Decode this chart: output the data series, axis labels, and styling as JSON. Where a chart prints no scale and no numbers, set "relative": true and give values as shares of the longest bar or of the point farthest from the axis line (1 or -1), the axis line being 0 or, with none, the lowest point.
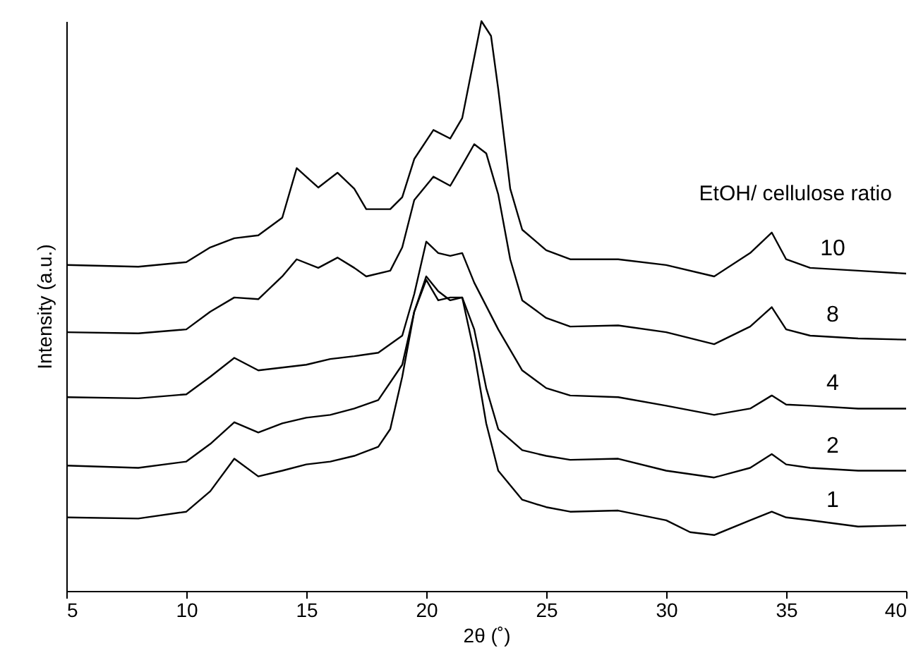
{
  "chart_data": {
    "type": "line",
    "relative": true,
    "xlabel": "2θ (˚)",
    "ylabel": "Intensity (a.u.)",
    "legend_title": "EtOH/ cellulose ratio",
    "xlim": [
      5,
      40
    ],
    "xticks": [
      5,
      10,
      15,
      20,
      25,
      30,
      35,
      40
    ],
    "grid": false,
    "marker": "none",
    "line_style": "solid",
    "series": [
      {
        "name": "10",
        "color": "#000000",
        "x": [
          5,
          8,
          10,
          11,
          12,
          13,
          14,
          14.6,
          15.5,
          16.3,
          17,
          17.5,
          18.5,
          19,
          19.5,
          20.3,
          21,
          21.5,
          22.3,
          22.7,
          23,
          23.5,
          24,
          25,
          26,
          28,
          30,
          32,
          33.5,
          34.4,
          35,
          36,
          38,
          40
        ],
        "values": [
          0.572,
          0.569,
          0.577,
          0.603,
          0.619,
          0.624,
          0.655,
          0.742,
          0.708,
          0.734,
          0.706,
          0.67,
          0.67,
          0.691,
          0.758,
          0.809,
          0.794,
          0.83,
          1,
          0.974,
          0.881,
          0.706,
          0.634,
          0.598,
          0.582,
          0.582,
          0.572,
          0.552,
          0.593,
          0.629,
          0.582,
          0.567,
          0.562,
          0.557
        ]
      },
      {
        "name": "8",
        "color": "#000000",
        "x": [
          5,
          8,
          10,
          11,
          12,
          13,
          14,
          14.6,
          15.5,
          16.3,
          17,
          17.5,
          18.5,
          19,
          19.5,
          20.3,
          21,
          21.5,
          22,
          22.5,
          23,
          23.5,
          24,
          25,
          26,
          28,
          30,
          32,
          33.5,
          34.4,
          35,
          36,
          38,
          40
        ],
        "values": [
          0.454,
          0.452,
          0.459,
          0.49,
          0.515,
          0.512,
          0.552,
          0.582,
          0.567,
          0.585,
          0.567,
          0.552,
          0.562,
          0.603,
          0.686,
          0.727,
          0.711,
          0.747,
          0.784,
          0.768,
          0.696,
          0.582,
          0.51,
          0.479,
          0.464,
          0.466,
          0.454,
          0.433,
          0.464,
          0.498,
          0.459,
          0.448,
          0.443,
          0.441
        ]
      },
      {
        "name": "4",
        "color": "#000000",
        "x": [
          5,
          8,
          10,
          11,
          12,
          13,
          14,
          15,
          16,
          17,
          18,
          19,
          19.5,
          20,
          20.5,
          21,
          21.5,
          22,
          23,
          24,
          25,
          26,
          28,
          30,
          32,
          33.5,
          34.4,
          35,
          36,
          38,
          40
        ],
        "values": [
          0.34,
          0.338,
          0.345,
          0.376,
          0.409,
          0.387,
          0.392,
          0.397,
          0.407,
          0.412,
          0.418,
          0.448,
          0.521,
          0.613,
          0.593,
          0.588,
          0.593,
          0.541,
          0.459,
          0.387,
          0.356,
          0.343,
          0.34,
          0.325,
          0.309,
          0.32,
          0.343,
          0.327,
          0.325,
          0.32,
          0.32
        ]
      },
      {
        "name": "2",
        "color": "#000000",
        "x": [
          5,
          8,
          10,
          11,
          12,
          13,
          14,
          15,
          16,
          17,
          18,
          19,
          19.5,
          20,
          20.5,
          21,
          21.5,
          22,
          22.5,
          23,
          24,
          25,
          26,
          28,
          30,
          32,
          33.5,
          34.4,
          35,
          36,
          38,
          40
        ],
        "values": [
          0.22,
          0.216,
          0.227,
          0.258,
          0.296,
          0.278,
          0.294,
          0.304,
          0.309,
          0.32,
          0.335,
          0.397,
          0.49,
          0.552,
          0.526,
          0.51,
          0.515,
          0.459,
          0.356,
          0.284,
          0.247,
          0.237,
          0.23,
          0.232,
          0.211,
          0.199,
          0.216,
          0.24,
          0.222,
          0.216,
          0.211,
          0.211
        ]
      },
      {
        "name": "1",
        "color": "#000000",
        "x": [
          5,
          8,
          10,
          11,
          12,
          13,
          14,
          15,
          16,
          17,
          18,
          18.5,
          19,
          19.5,
          20,
          20.5,
          21,
          21.5,
          22,
          22.5,
          23,
          24,
          25,
          26,
          28,
          30,
          31,
          32,
          33.5,
          34.4,
          35,
          36,
          38,
          40
        ],
        "values": [
          0.129,
          0.127,
          0.139,
          0.175,
          0.232,
          0.201,
          0.211,
          0.222,
          0.227,
          0.237,
          0.253,
          0.284,
          0.376,
          0.49,
          0.546,
          0.51,
          0.515,
          0.515,
          0.418,
          0.294,
          0.211,
          0.16,
          0.147,
          0.139,
          0.141,
          0.124,
          0.103,
          0.098,
          0.124,
          0.139,
          0.129,
          0.124,
          0.113,
          0.115
        ]
      }
    ]
  }
}
